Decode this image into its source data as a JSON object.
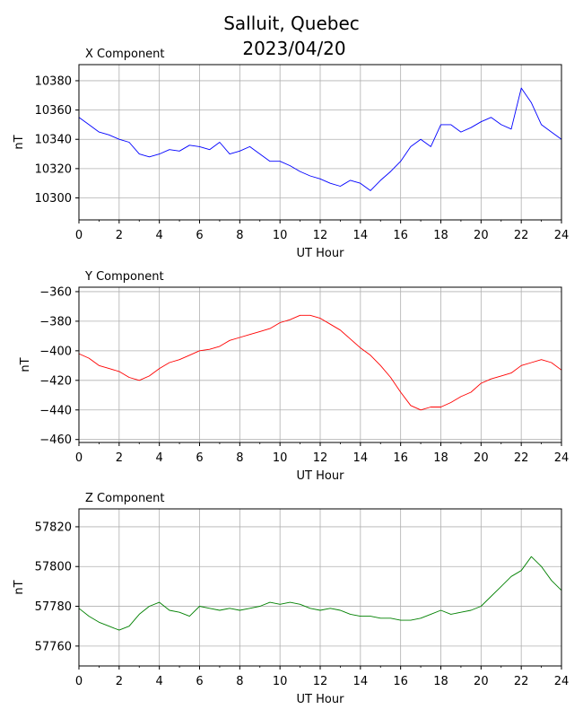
{
  "figure": {
    "title_line1": "Salluit, Quebec",
    "title_line2": "2023/04/20"
  },
  "chart_data": [
    {
      "type": "line",
      "title": "X Component",
      "xlabel": "UT Hour",
      "ylabel": "nT",
      "color": "#0000ff",
      "xlim": [
        0,
        24
      ],
      "ylim": [
        10285,
        10391
      ],
      "xticks": [
        0,
        2,
        4,
        6,
        8,
        10,
        12,
        14,
        16,
        18,
        20,
        22,
        24
      ],
      "yticks": [
        10300,
        10320,
        10340,
        10360,
        10380
      ],
      "grid": true,
      "series": [
        {
          "x": [
            0,
            0.5,
            1,
            1.5,
            2,
            2.5,
            3,
            3.5,
            4,
            4.5,
            5,
            5.5,
            6,
            6.5,
            7,
            7.5,
            8,
            8.5,
            9,
            9.5,
            10,
            10.5,
            11,
            11.5,
            12,
            12.5,
            13,
            13.5,
            14,
            14.5,
            15,
            15.5,
            16,
            16.5,
            17,
            17.5,
            18,
            18.5,
            19,
            19.5,
            20,
            20.5,
            21,
            21.5,
            22,
            22.5,
            23,
            23.5,
            24
          ],
          "y": [
            10355,
            10350,
            10345,
            10343,
            10340,
            10338,
            10330,
            10328,
            10330,
            10333,
            10332,
            10336,
            10335,
            10333,
            10338,
            10330,
            10332,
            10335,
            10330,
            10325,
            10325,
            10322,
            10318,
            10315,
            10313,
            10310,
            10308,
            10312,
            10310,
            10305,
            10312,
            10318,
            10325,
            10335,
            10340,
            10335,
            10350,
            10350,
            10345,
            10348,
            10352,
            10355,
            10350,
            10347,
            10375,
            10365,
            10350,
            10345,
            10340
          ]
        }
      ]
    },
    {
      "type": "line",
      "title": "Y Component",
      "xlabel": "UT Hour",
      "ylabel": "nT",
      "color": "#ff0000",
      "xlim": [
        0,
        24
      ],
      "ylim": [
        -462,
        -357
      ],
      "xticks": [
        0,
        2,
        4,
        6,
        8,
        10,
        12,
        14,
        16,
        18,
        20,
        22,
        24
      ],
      "yticks": [
        -460,
        -440,
        -420,
        -400,
        -380,
        -360
      ],
      "grid": true,
      "series": [
        {
          "x": [
            0,
            0.5,
            1,
            1.5,
            2,
            2.5,
            3,
            3.5,
            4,
            4.5,
            5,
            5.5,
            6,
            6.5,
            7,
            7.5,
            8,
            8.5,
            9,
            9.5,
            10,
            10.5,
            11,
            11.5,
            12,
            12.5,
            13,
            13.5,
            14,
            14.5,
            15,
            15.5,
            16,
            16.5,
            17,
            17.5,
            18,
            18.5,
            19,
            19.5,
            20,
            20.5,
            21,
            21.5,
            22,
            22.5,
            23,
            23.5,
            24
          ],
          "y": [
            -402,
            -405,
            -410,
            -412,
            -414,
            -418,
            -420,
            -417,
            -412,
            -408,
            -406,
            -403,
            -400,
            -399,
            -397,
            -393,
            -391,
            -389,
            -387,
            -385,
            -381,
            -379,
            -376,
            -376,
            -378,
            -382,
            -386,
            -392,
            -398,
            -403,
            -410,
            -418,
            -428,
            -437,
            -440,
            -438,
            -438,
            -435,
            -431,
            -428,
            -422,
            -419,
            -417,
            -415,
            -410,
            -408,
            -406,
            -408,
            -413
          ]
        }
      ]
    },
    {
      "type": "line",
      "title": "Z Component",
      "xlabel": "UT Hour",
      "ylabel": "nT",
      "color": "#008000",
      "xlim": [
        0,
        24
      ],
      "ylim": [
        57750,
        57829
      ],
      "xticks": [
        0,
        2,
        4,
        6,
        8,
        10,
        12,
        14,
        16,
        18,
        20,
        22,
        24
      ],
      "yticks": [
        57760,
        57780,
        57800,
        57820
      ],
      "grid": true,
      "series": [
        {
          "x": [
            0,
            0.5,
            1,
            1.5,
            2,
            2.5,
            3,
            3.5,
            4,
            4.5,
            5,
            5.5,
            6,
            6.5,
            7,
            7.5,
            8,
            8.5,
            9,
            9.5,
            10,
            10.5,
            11,
            11.5,
            12,
            12.5,
            13,
            13.5,
            14,
            14.5,
            15,
            15.5,
            16,
            16.5,
            17,
            17.5,
            18,
            18.5,
            19,
            19.5,
            20,
            20.5,
            21,
            21.5,
            22,
            22.5,
            23,
            23.5,
            24
          ],
          "y": [
            57779,
            57775,
            57772,
            57770,
            57768,
            57770,
            57776,
            57780,
            57782,
            57778,
            57777,
            57775,
            57780,
            57779,
            57778,
            57779,
            57778,
            57779,
            57780,
            57782,
            57781,
            57782,
            57781,
            57779,
            57778,
            57779,
            57778,
            57776,
            57775,
            57775,
            57774,
            57774,
            57773,
            57773,
            57774,
            57776,
            57778,
            57776,
            57777,
            57778,
            57780,
            57785,
            57790,
            57795,
            57798,
            57805,
            57800,
            57793,
            57788
          ]
        }
      ]
    }
  ]
}
